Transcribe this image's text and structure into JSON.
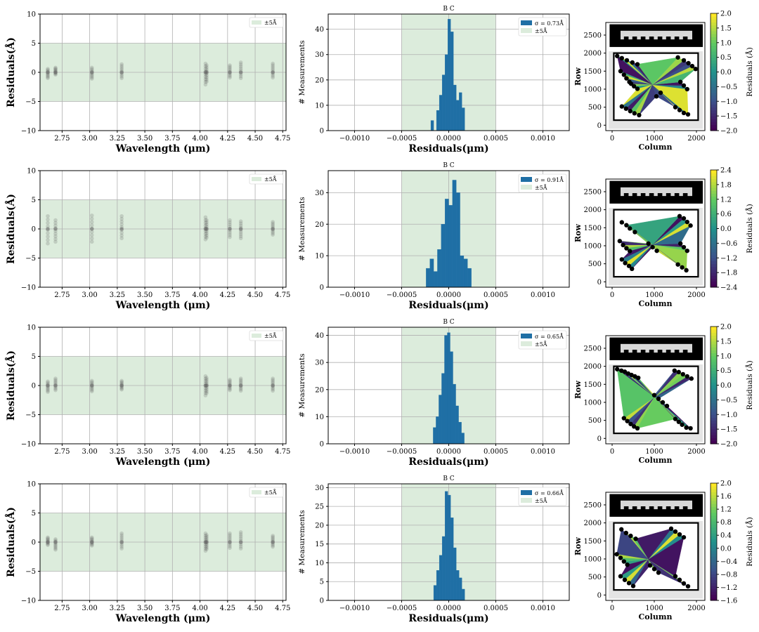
{
  "colors": {
    "band": "#dcecdc",
    "hist": "#1f6fa5",
    "grid": "#b0b0b0",
    "dots": "#606060",
    "station": "#000000",
    "colormap": [
      "#440154",
      "#3b528b",
      "#21918c",
      "#5ec962",
      "#fde725"
    ]
  },
  "chart_data": [
    {
      "panel": 1,
      "type": "scatter",
      "xlabel": "Wavelength (μm)",
      "ylabel": "Residuals(Å)",
      "xlim": [
        2.55,
        4.78
      ],
      "ylim": [
        -10,
        10
      ],
      "xticks": [
        "2.75",
        "3.00",
        "3.25",
        "3.50",
        "3.75",
        "4.00",
        "4.25",
        "4.50",
        "4.75"
      ],
      "yticks": [
        "−10",
        "−5",
        "0",
        "5",
        "10"
      ],
      "band": [
        -5,
        5
      ],
      "legend": "±5Å",
      "grid": true,
      "x": [
        2.62,
        2.69,
        3.02,
        3.29,
        4.05,
        4.06,
        4.27,
        4.37,
        4.66
      ],
      "y_ranges": [
        [
          -1.0,
          0.6
        ],
        [
          -0.4,
          0.8
        ],
        [
          -1.1,
          0.8
        ],
        [
          -1.0,
          1.4
        ],
        [
          -2.1,
          1.5
        ],
        [
          -1.6,
          1.2
        ],
        [
          -0.9,
          1.2
        ],
        [
          -1.0,
          1.7
        ],
        [
          -0.9,
          1.5
        ]
      ]
    },
    {
      "panel": 1,
      "type": "bar",
      "title": "B C",
      "xlabel": "Residuals(μm)",
      "ylabel": "# Measurements",
      "xlim": [
        -0.00128,
        0.00128
      ],
      "ylim": [
        0,
        46
      ],
      "xticks": [
        "−0.0010",
        "−0.0005",
        "0.0000",
        "0.0005",
        "0.0010"
      ],
      "yticks": [
        "0",
        "10",
        "20",
        "30",
        "40"
      ],
      "band": [
        -0.0005,
        0.0005
      ],
      "legend": [
        "σ = 0.73Å",
        "±5Å"
      ],
      "legend_placement": "top-right",
      "grid": true,
      "bin_edges": [
        -0.00019,
        -0.00016,
        -0.00013,
        -0.0001,
        -7e-05,
        -4e-05,
        -1e-05,
        2e-05,
        5e-05,
        8e-05,
        0.00011,
        0.00014,
        0.00017
      ],
      "values": [
        4,
        0,
        8,
        14,
        22,
        30,
        44,
        39,
        18,
        12,
        15,
        9
      ]
    },
    {
      "panel": 1,
      "type": "heatmap",
      "xlabel": "Column",
      "ylabel": "Row",
      "xlim": [
        -150,
        2200
      ],
      "ylim": [
        -150,
        2850
      ],
      "xticks": [
        "0",
        "1000",
        "2000"
      ],
      "yticks": [
        "0",
        "500",
        "1000",
        "1500",
        "2000",
        "2500"
      ],
      "colorbar_label": "Residuals (Å)",
      "colorbar_range": [
        -2.0,
        2.0
      ],
      "colorbar_ticks": [
        "−2.0",
        "−1.5",
        "−1.0",
        "−0.5",
        "0.0",
        "0.5",
        "1.0",
        "1.5",
        "2.0"
      ],
      "stations": [
        [
          120,
          1920
        ],
        [
          230,
          1860
        ],
        [
          350,
          1800
        ],
        [
          480,
          1740
        ],
        [
          600,
          1690
        ],
        [
          200,
          1500
        ],
        [
          280,
          1400
        ],
        [
          340,
          1300
        ],
        [
          410,
          1200
        ],
        [
          450,
          1150
        ],
        [
          520,
          1080
        ],
        [
          600,
          1010
        ],
        [
          230,
          520
        ],
        [
          330,
          460
        ],
        [
          430,
          390
        ],
        [
          530,
          330
        ],
        [
          640,
          280
        ],
        [
          1560,
          1880
        ],
        [
          1700,
          1800
        ],
        [
          1810,
          1720
        ],
        [
          1900,
          1640
        ],
        [
          1980,
          1560
        ],
        [
          1620,
          1200
        ],
        [
          1700,
          1100
        ],
        [
          1780,
          1000
        ],
        [
          1500,
          500
        ],
        [
          1600,
          420
        ],
        [
          1700,
          340
        ],
        [
          1800,
          300
        ],
        [
          1050,
          800
        ],
        [
          1150,
          900
        ]
      ]
    },
    {
      "panel": 2,
      "type": "scatter",
      "xlabel": "Wavelength (μm)",
      "ylabel": "Residuals(Å)",
      "xlim": [
        2.55,
        4.78
      ],
      "ylim": [
        -10,
        10
      ],
      "xticks": [
        "2.75",
        "3.00",
        "3.25",
        "3.50",
        "3.75",
        "4.00",
        "4.25",
        "4.50",
        "4.75"
      ],
      "yticks": [
        "−10",
        "−5",
        "0",
        "5",
        "10"
      ],
      "band": [
        -5,
        5
      ],
      "legend": "±5Å",
      "grid": true,
      "x": [
        2.62,
        2.69,
        3.02,
        3.29,
        4.05,
        4.06,
        4.27,
        4.37,
        4.66
      ],
      "y_ranges": [
        [
          -2.5,
          2.2
        ],
        [
          -2.2,
          1.5
        ],
        [
          -2.2,
          2.3
        ],
        [
          -1.6,
          2.2
        ],
        [
          -1.8,
          2.0
        ],
        [
          -1.5,
          1.5
        ],
        [
          -1.4,
          1.5
        ],
        [
          -1.6,
          1.3
        ],
        [
          -1.0,
          1.2
        ]
      ]
    },
    {
      "panel": 2,
      "type": "bar",
      "title": "B C",
      "xlabel": "Residuals(μm)",
      "ylabel": "# Measurements",
      "xlim": [
        -0.00128,
        0.00128
      ],
      "ylim": [
        0,
        37
      ],
      "xticks": [
        "−0.0010",
        "−0.0005",
        "0.0000",
        "0.0005",
        "0.0010"
      ],
      "yticks": [
        "0",
        "10",
        "20",
        "30"
      ],
      "band": [
        -0.0005,
        0.0005
      ],
      "legend": [
        "σ = 0.91Å",
        "±5Å"
      ],
      "legend_placement": "top-right",
      "grid": true,
      "bin_edges": [
        -0.00024,
        -0.0002,
        -0.00016,
        -0.00012,
        -8e-05,
        -4e-05,
        0.0,
        4e-05,
        8e-05,
        0.00012,
        0.00016,
        0.0002,
        0.00024
      ],
      "values": [
        6,
        9,
        5,
        12,
        20,
        28,
        26,
        34,
        30,
        10,
        9,
        6
      ]
    },
    {
      "panel": 2,
      "type": "heatmap",
      "xlabel": "Column",
      "ylabel": "Row",
      "xlim": [
        -150,
        2200
      ],
      "ylim": [
        -150,
        2850
      ],
      "xticks": [
        "0",
        "1000",
        "2000"
      ],
      "yticks": [
        "0",
        "500",
        "1000",
        "1500",
        "2000",
        "2500"
      ],
      "colorbar_label": "Residuals (Å)",
      "colorbar_range": [
        -2.4,
        2.4
      ],
      "colorbar_ticks": [
        "−2.4",
        "−1.8",
        "−1.2",
        "−0.6",
        "0.0",
        "0.6",
        "1.2",
        "1.8",
        "2.4"
      ],
      "stations": [
        [
          230,
          1650
        ],
        [
          340,
          1570
        ],
        [
          420,
          1480
        ],
        [
          540,
          1380
        ],
        [
          180,
          1130
        ],
        [
          260,
          1020
        ],
        [
          340,
          930
        ],
        [
          420,
          850
        ],
        [
          230,
          620
        ],
        [
          310,
          520
        ],
        [
          400,
          440
        ],
        [
          470,
          360
        ],
        [
          860,
          1060
        ],
        [
          960,
          960
        ],
        [
          1060,
          860
        ],
        [
          1600,
          1820
        ],
        [
          1700,
          1760
        ],
        [
          1780,
          1660
        ],
        [
          1860,
          1560
        ],
        [
          1620,
          1060
        ],
        [
          1700,
          960
        ],
        [
          1780,
          860
        ],
        [
          1560,
          480
        ],
        [
          1660,
          400
        ],
        [
          1760,
          320
        ]
      ]
    },
    {
      "panel": 3,
      "type": "scatter",
      "xlabel": "Wavelength (μm)",
      "ylabel": "Residuals(Å)",
      "xlim": [
        2.55,
        4.78
      ],
      "ylim": [
        -10,
        10
      ],
      "xticks": [
        "2.75",
        "3.00",
        "3.25",
        "3.50",
        "3.75",
        "4.00",
        "4.25",
        "4.50",
        "4.75"
      ],
      "yticks": [
        "−10",
        "−5",
        "0",
        "5",
        "10"
      ],
      "band": [
        -5,
        5
      ],
      "legend": "±5Å",
      "grid": true,
      "x": [
        2.62,
        2.69,
        3.02,
        3.29,
        4.05,
        4.06,
        4.27,
        4.37,
        4.66
      ],
      "y_ranges": [
        [
          -1.1,
          0.7
        ],
        [
          -0.8,
          1.2
        ],
        [
          -1.0,
          0.8
        ],
        [
          -0.7,
          0.8
        ],
        [
          -1.7,
          1.6
        ],
        [
          -1.3,
          1.3
        ],
        [
          -0.8,
          1.0
        ],
        [
          -0.9,
          1.2
        ],
        [
          -0.9,
          1.2
        ]
      ]
    },
    {
      "panel": 3,
      "type": "bar",
      "title": "B C",
      "xlabel": "Residuals(μm)",
      "ylabel": "# Measurements",
      "xlim": [
        -0.00128,
        0.00128
      ],
      "ylim": [
        0,
        43
      ],
      "xticks": [
        "−0.0010",
        "−0.0005",
        "0.0000",
        "0.0005",
        "0.0010"
      ],
      "yticks": [
        "0",
        "10",
        "20",
        "30",
        "40"
      ],
      "band": [
        -0.0005,
        0.0005
      ],
      "legend": [
        "σ = 0.65Å",
        "±5Å"
      ],
      "legend_placement": "top-right",
      "grid": true,
      "bin_edges": [
        -0.000165,
        -0.000135,
        -0.000105,
        -7.5e-05,
        -4.5e-05,
        -1.5e-05,
        1.5e-05,
        4.5e-05,
        7.5e-05,
        0.000105,
        0.000135,
        0.000165
      ],
      "values": [
        6,
        10,
        18,
        26,
        40,
        41,
        34,
        22,
        14,
        8,
        4
      ]
    },
    {
      "panel": 3,
      "type": "heatmap",
      "xlabel": "Column",
      "ylabel": "Row",
      "xlim": [
        -150,
        2200
      ],
      "ylim": [
        -150,
        2850
      ],
      "xticks": [
        "0",
        "1000",
        "2000"
      ],
      "yticks": [
        "0",
        "500",
        "1000",
        "1500",
        "2000",
        "2500"
      ],
      "colorbar_label": "Residuals (Å)",
      "colorbar_range": [
        -2.0,
        2.0
      ],
      "colorbar_ticks": [
        "−2.0",
        "−1.5",
        "−1.0",
        "−0.5",
        "0.0",
        "0.5",
        "1.0",
        "1.5",
        "2.0"
      ],
      "stations": [
        [
          120,
          1920
        ],
        [
          220,
          1880
        ],
        [
          300,
          1850
        ],
        [
          380,
          1800
        ],
        [
          460,
          1760
        ],
        [
          540,
          1720
        ],
        [
          620,
          1680
        ],
        [
          1480,
          1880
        ],
        [
          1580,
          1840
        ],
        [
          1680,
          1780
        ],
        [
          1780,
          1720
        ],
        [
          1880,
          1660
        ],
        [
          1000,
          1200
        ],
        [
          1100,
          1100
        ],
        [
          1200,
          1000
        ],
        [
          1300,
          900
        ],
        [
          280,
          560
        ],
        [
          360,
          480
        ],
        [
          440,
          400
        ],
        [
          520,
          330
        ],
        [
          600,
          280
        ],
        [
          1500,
          540
        ],
        [
          1580,
          460
        ],
        [
          1660,
          380
        ],
        [
          1760,
          300
        ],
        [
          1860,
          280
        ]
      ]
    },
    {
      "panel": 4,
      "type": "scatter",
      "xlabel": "Wavelength (μm)",
      "ylabel": "Residuals(Å)",
      "xlim": [
        2.55,
        4.78
      ],
      "ylim": [
        -10,
        10
      ],
      "xticks": [
        "2.75",
        "3.00",
        "3.25",
        "3.50",
        "3.75",
        "4.00",
        "4.25",
        "4.50",
        "4.75"
      ],
      "yticks": [
        "−10",
        "−5",
        "0",
        "5",
        "10"
      ],
      "band": [
        -5,
        5
      ],
      "legend": "±5Å",
      "grid": true,
      "x": [
        2.62,
        2.69,
        3.02,
        3.29,
        4.05,
        4.06,
        4.27,
        4.37,
        4.66
      ],
      "y_ranges": [
        [
          -0.5,
          0.8
        ],
        [
          -1.3,
          0.5
        ],
        [
          -0.6,
          0.8
        ],
        [
          -1.1,
          1.5
        ],
        [
          -1.5,
          1.5
        ],
        [
          -1.2,
          1.2
        ],
        [
          -1.0,
          1.5
        ],
        [
          -1.1,
          1.7
        ],
        [
          -0.8,
          1.1
        ]
      ]
    },
    {
      "panel": 4,
      "type": "bar",
      "title": "B C",
      "xlabel": "Residuals(μm)",
      "ylabel": "# Measurements",
      "xlim": [
        -0.00128,
        0.00128
      ],
      "ylim": [
        0,
        31
      ],
      "xticks": [
        "−0.0010",
        "−0.0005",
        "0.0000",
        "0.0005",
        "0.0010"
      ],
      "yticks": [
        "0",
        "5",
        "10",
        "15",
        "20",
        "25",
        "30"
      ],
      "band": [
        -0.0005,
        0.0005
      ],
      "legend": [
        "σ = 0.66Å",
        "±5Å"
      ],
      "legend_placement": "top-right",
      "grid": true,
      "bin_edges": [
        -0.00016,
        -0.00013,
        -0.0001,
        -7e-05,
        -4e-05,
        -1e-05,
        2e-05,
        5e-05,
        8e-05,
        0.00011,
        0.00014,
        0.00017
      ],
      "values": [
        4,
        8,
        12,
        17,
        29,
        28,
        22,
        14,
        8,
        6,
        3
      ]
    },
    {
      "panel": 4,
      "type": "heatmap",
      "xlabel": "Column",
      "ylabel": "Row",
      "xlim": [
        -150,
        2200
      ],
      "ylim": [
        -150,
        2850
      ],
      "xticks": [
        "0",
        "1000",
        "2000"
      ],
      "yticks": [
        "0",
        "500",
        "1000",
        "1500",
        "2000",
        "2500"
      ],
      "colorbar_label": "Residuals (Å)",
      "colorbar_range": [
        -1.6,
        2.0
      ],
      "colorbar_ticks": [
        "−1.6",
        "−1.2",
        "−0.8",
        "−0.4",
        "0.0",
        "0.4",
        "0.8",
        "1.2",
        "1.6",
        "2.0"
      ],
      "stations": [
        [
          220,
          1820
        ],
        [
          330,
          1720
        ],
        [
          440,
          1640
        ],
        [
          560,
          1560
        ],
        [
          110,
          1130
        ],
        [
          200,
          1030
        ],
        [
          280,
          930
        ],
        [
          360,
          840
        ],
        [
          200,
          520
        ],
        [
          300,
          420
        ],
        [
          400,
          330
        ],
        [
          500,
          250
        ],
        [
          900,
          820
        ],
        [
          1000,
          720
        ],
        [
          1100,
          620
        ],
        [
          1400,
          1840
        ],
        [
          1500,
          1760
        ],
        [
          1600,
          1680
        ],
        [
          1700,
          1600
        ],
        [
          1500,
          520
        ],
        [
          1600,
          420
        ],
        [
          1700,
          320
        ],
        [
          1800,
          240
        ]
      ]
    }
  ]
}
